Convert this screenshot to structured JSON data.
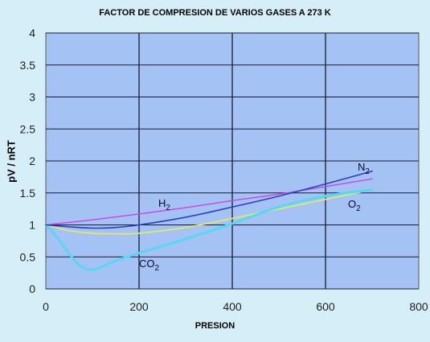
{
  "chart_data": {
    "type": "line",
    "title": "FACTOR DE COMPRESION DE VARIOS GASES A 273 K",
    "xlabel": "PRESION",
    "ylabel": "pV / nRT",
    "xlim": [
      0,
      800
    ],
    "ylim": [
      0,
      4
    ],
    "xticks": [
      "0",
      "200",
      "400",
      "600",
      "800"
    ],
    "yticks": [
      "0",
      "0.5",
      "1",
      "1.5",
      "2",
      "2.5",
      "3",
      "3.5",
      "4"
    ],
    "grid": true,
    "plot_background": "#a4c2f4",
    "series": [
      {
        "name": "H2",
        "label": "H",
        "subscript": "2",
        "color": "#cc44dd",
        "x": [
          0,
          100,
          200,
          300,
          400,
          500,
          600,
          700
        ],
        "y": [
          1.0,
          1.08,
          1.17,
          1.27,
          1.38,
          1.48,
          1.6,
          1.72
        ]
      },
      {
        "name": "N2",
        "label": "N",
        "subscript": "2",
        "color": "#2c3fbf",
        "x": [
          0,
          50,
          100,
          150,
          200,
          300,
          400,
          500,
          600,
          700
        ],
        "y": [
          1.0,
          0.97,
          0.95,
          0.96,
          1.0,
          1.12,
          1.28,
          1.45,
          1.64,
          1.84
        ]
      },
      {
        "name": "O2",
        "label": "O",
        "subscript": "2",
        "color": "#e2e86a",
        "x": [
          0,
          50,
          100,
          150,
          200,
          300,
          400,
          500,
          600,
          700
        ],
        "y": [
          1.0,
          0.91,
          0.87,
          0.86,
          0.87,
          0.96,
          1.1,
          1.25,
          1.4,
          1.55
        ]
      },
      {
        "name": "CO2",
        "label": "CO",
        "subscript": "2",
        "color": "#56d8f2",
        "x": [
          0,
          25,
          50,
          75,
          100,
          125,
          150,
          200,
          300,
          400,
          500,
          600,
          700
        ],
        "y": [
          1.0,
          0.8,
          0.55,
          0.35,
          0.3,
          0.36,
          0.44,
          0.56,
          0.78,
          1.02,
          1.28,
          1.45,
          1.55
        ]
      }
    ]
  }
}
